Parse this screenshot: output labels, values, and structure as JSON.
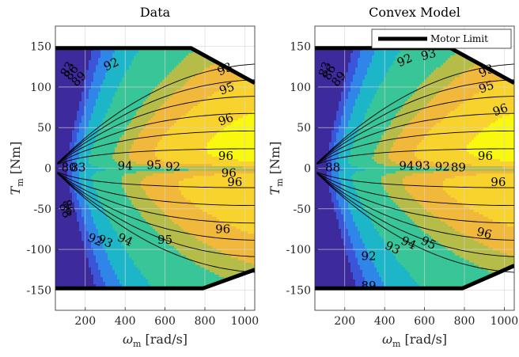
{
  "colors": {
    "levels": [
      "#3d2b9d",
      "#3b55d9",
      "#2f86e8",
      "#1db6c8",
      "#38c597",
      "#b5bd48",
      "#f1b93c",
      "#f8d22d",
      "#f9f80f"
    ],
    "motor_limit": "#000000"
  },
  "chart_data": [
    {
      "type": "contour",
      "title": "Data",
      "xlabel_sym": "ω",
      "xlabel_sub": "m",
      "xlabel_unit": " [rad/s]",
      "ylabel_sym": "T",
      "ylabel_sub": "m",
      "ylabel_unit": " [Nm]",
      "xlim": [
        50,
        1050
      ],
      "ylim": [
        -175,
        175
      ],
      "xticks": [
        200,
        400,
        600,
        800,
        1000
      ],
      "xtick_labels": [
        "200",
        "400",
        "600",
        "800",
        "1000"
      ],
      "yticks": [
        150,
        100,
        50,
        0,
        -50,
        -100,
        -150
      ],
      "ytick_labels": [
        "150",
        "100",
        "50",
        "0",
        "-50",
        "-100",
        "-150"
      ],
      "grid": true,
      "motor_limit": {
        "max_torque": 148,
        "corner_speed": 730,
        "torque_at_xmax": 105
      },
      "neg_motor_limit": {
        "max_torque": -148,
        "corner_speed": 790,
        "torque_at_xmax": -125
      },
      "contour_levels": [
        80,
        83,
        86,
        89,
        92,
        93,
        94,
        95,
        96
      ],
      "contour_labels": [
        {
          "text": "83",
          "x": 110,
          "y": 122,
          "rot": -60
        },
        {
          "text": "86",
          "x": 130,
          "y": 118,
          "rot": -55
        },
        {
          "text": "89",
          "x": 168,
          "y": 110,
          "rot": -45
        },
        {
          "text": "92",
          "x": 330,
          "y": 128,
          "rot": -25
        },
        {
          "text": "93",
          "x": 900,
          "y": 122,
          "rot": -25
        },
        {
          "text": "95",
          "x": 910,
          "y": 98,
          "rot": -20
        },
        {
          "text": "96",
          "x": 905,
          "y": 60,
          "rot": -20
        },
        {
          "text": "96",
          "x": 905,
          "y": 15,
          "rot": 0
        },
        {
          "text": "80",
          "x": 118,
          "y": 1,
          "rot": 0
        },
        {
          "text": "83",
          "x": 165,
          "y": 1,
          "rot": 0
        },
        {
          "text": "94",
          "x": 400,
          "y": 3,
          "rot": 0
        },
        {
          "text": "95",
          "x": 545,
          "y": 4,
          "rot": 0
        },
        {
          "text": "92",
          "x": 640,
          "y": 2,
          "rot": 0
        },
        {
          "text": "96",
          "x": 920,
          "y": -6,
          "rot": 0
        },
        {
          "text": "96",
          "x": 950,
          "y": -17,
          "rot": 0
        },
        {
          "text": "88",
          "x": 100,
          "y": -52,
          "rot": 70
        },
        {
          "text": "86",
          "x": 115,
          "y": -48,
          "rot": 70
        },
        {
          "text": "92",
          "x": 250,
          "y": -88,
          "rot": 25
        },
        {
          "text": "93",
          "x": 300,
          "y": -90,
          "rot": 25
        },
        {
          "text": "94",
          "x": 400,
          "y": -88,
          "rot": 25
        },
        {
          "text": "95",
          "x": 600,
          "y": -88,
          "rot": 0
        },
        {
          "text": "96",
          "x": 890,
          "y": -75,
          "rot": 0
        }
      ]
    },
    {
      "type": "contour",
      "title": "Convex Model",
      "xlabel_sym": "ω",
      "xlabel_sub": "m",
      "xlabel_unit": " [rad/s]",
      "ylabel_sym": "T",
      "ylabel_sub": "m",
      "ylabel_unit": " [Nm]",
      "xlim": [
        50,
        1050
      ],
      "ylim": [
        -175,
        175
      ],
      "xticks": [
        200,
        400,
        600,
        800,
        1000
      ],
      "xtick_labels": [
        "200",
        "400",
        "600",
        "800",
        "1000"
      ],
      "yticks": [
        150,
        100,
        50,
        0,
        -50,
        -100,
        -150
      ],
      "ytick_labels": [
        "150",
        "100",
        "50",
        "0",
        "-50",
        "-100",
        "-150"
      ],
      "grid": true,
      "legend": {
        "entries": [
          "Motor Limit"
        ],
        "placement": "top-right"
      },
      "motor_limit": {
        "max_torque": 148,
        "corner_speed": 730,
        "torque_at_xmax": 105
      },
      "neg_motor_limit": {
        "max_torque": -148,
        "corner_speed": 790,
        "torque_at_xmax": -120
      },
      "contour_levels": [
        80,
        83,
        86,
        89,
        92,
        93,
        94,
        95,
        96
      ],
      "contour_labels": [
        {
          "text": "83",
          "x": 100,
          "y": 122,
          "rot": -70
        },
        {
          "text": "86",
          "x": 122,
          "y": 118,
          "rot": -65
        },
        {
          "text": "89",
          "x": 170,
          "y": 110,
          "rot": -50
        },
        {
          "text": "92",
          "x": 500,
          "y": 133,
          "rot": -25
        },
        {
          "text": "93",
          "x": 620,
          "y": 140,
          "rot": -15
        },
        {
          "text": "93",
          "x": 910,
          "y": 120,
          "rot": -25
        },
        {
          "text": "95",
          "x": 910,
          "y": 100,
          "rot": -20
        },
        {
          "text": "96",
          "x": 980,
          "y": 72,
          "rot": -20
        },
        {
          "text": "96",
          "x": 905,
          "y": 15,
          "rot": 0
        },
        {
          "text": "88",
          "x": 140,
          "y": 1,
          "rot": 0
        },
        {
          "text": "94",
          "x": 510,
          "y": 3,
          "rot": 0
        },
        {
          "text": "93",
          "x": 590,
          "y": 3,
          "rot": 0
        },
        {
          "text": "92",
          "x": 690,
          "y": 2,
          "rot": 0
        },
        {
          "text": "89",
          "x": 770,
          "y": 1,
          "rot": 0
        },
        {
          "text": "96",
          "x": 970,
          "y": -17,
          "rot": 0
        },
        {
          "text": "92",
          "x": 320,
          "y": -108,
          "rot": 0
        },
        {
          "text": "93",
          "x": 440,
          "y": -98,
          "rot": 25
        },
        {
          "text": "94",
          "x": 520,
          "y": -92,
          "rot": 25
        },
        {
          "text": "95",
          "x": 620,
          "y": -92,
          "rot": 25
        },
        {
          "text": "96",
          "x": 900,
          "y": -80,
          "rot": 15
        },
        {
          "text": "89",
          "x": 320,
          "y": -145,
          "rot": 0
        }
      ]
    }
  ]
}
